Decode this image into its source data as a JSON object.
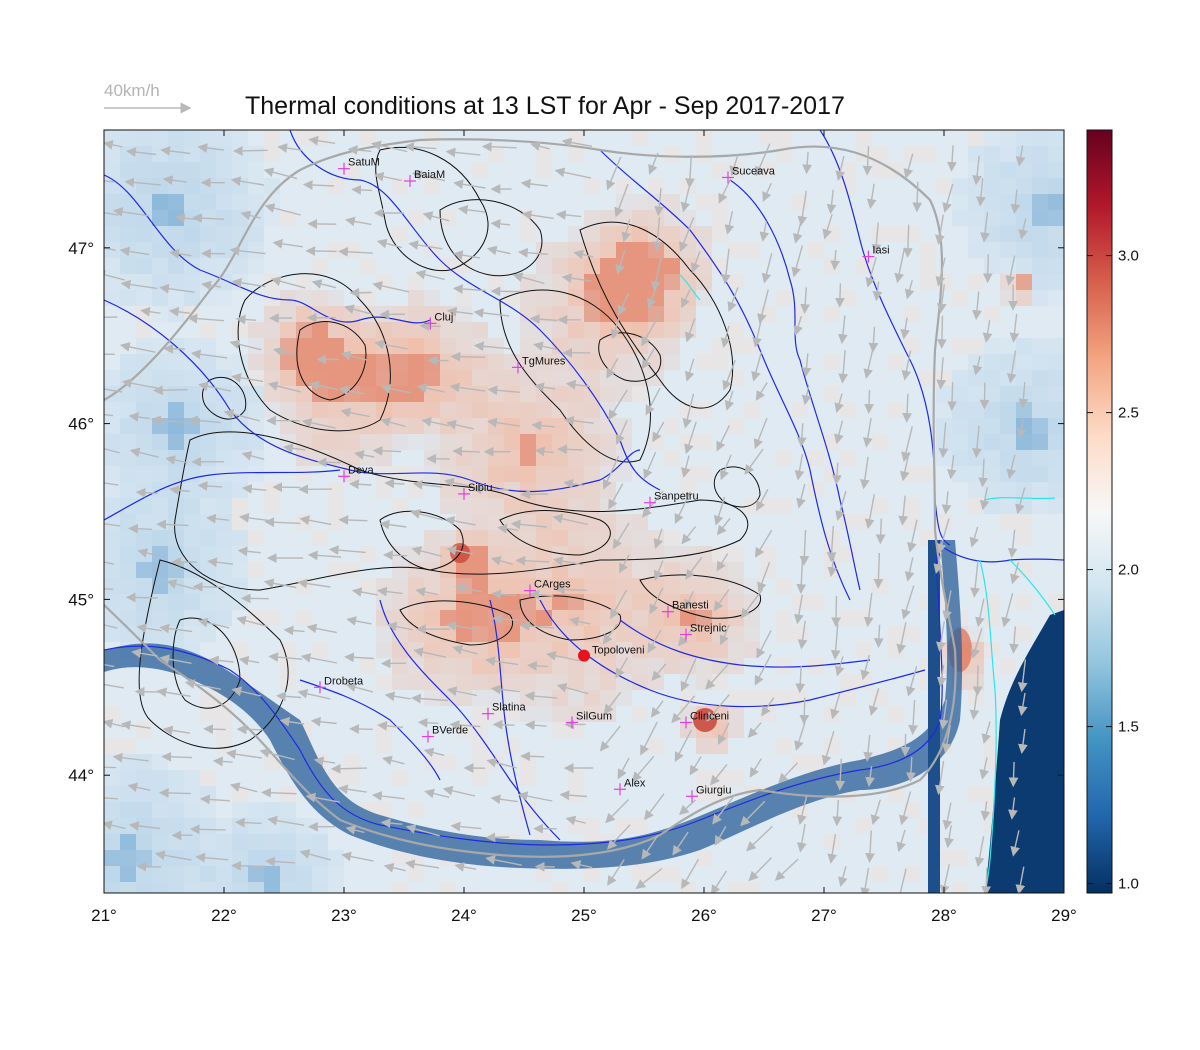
{
  "title": "Thermal conditions at 13 LST for Apr - Sep  2017-2017",
  "wind_scale": {
    "label": "40km/h"
  },
  "map": {
    "lon_range": [
      21,
      29
    ],
    "lat_range": [
      43.33,
      47.67
    ],
    "x_ticks": [
      {
        "value": 21,
        "label": "21°"
      },
      {
        "value": 22,
        "label": "22°"
      },
      {
        "value": 23,
        "label": "23°"
      },
      {
        "value": 24,
        "label": "24°"
      },
      {
        "value": 25,
        "label": "25°"
      },
      {
        "value": 26,
        "label": "26°"
      },
      {
        "value": 27,
        "label": "27°"
      },
      {
        "value": 28,
        "label": "28°"
      },
      {
        "value": 29,
        "label": "29°"
      }
    ],
    "y_ticks": [
      {
        "value": 44,
        "label": "44°"
      },
      {
        "value": 45,
        "label": "45°"
      },
      {
        "value": 46,
        "label": "46°"
      },
      {
        "value": 47,
        "label": "47°"
      }
    ],
    "cities": [
      {
        "name": "SatuM",
        "lon": 23.0,
        "lat": 47.45
      },
      {
        "name": "BaiaM",
        "lon": 23.55,
        "lat": 47.38
      },
      {
        "name": "Suceava",
        "lon": 26.2,
        "lat": 47.4
      },
      {
        "name": "Iasi",
        "lon": 27.37,
        "lat": 46.95
      },
      {
        "name": "Cluj",
        "lon": 23.72,
        "lat": 46.57
      },
      {
        "name": "TgMures",
        "lon": 24.45,
        "lat": 46.32
      },
      {
        "name": "Deva",
        "lon": 23.0,
        "lat": 45.7
      },
      {
        "name": "Sibiu",
        "lon": 24.0,
        "lat": 45.6
      },
      {
        "name": "Sanpetru",
        "lon": 25.55,
        "lat": 45.55
      },
      {
        "name": "CArges",
        "lon": 24.55,
        "lat": 45.05
      },
      {
        "name": "Banesti",
        "lon": 25.7,
        "lat": 44.93
      },
      {
        "name": "Strejnic",
        "lon": 25.85,
        "lat": 44.8
      },
      {
        "name": "Drobeta",
        "lon": 22.8,
        "lat": 44.5
      },
      {
        "name": "Slatina",
        "lon": 24.2,
        "lat": 44.35
      },
      {
        "name": "SilGum",
        "lon": 24.9,
        "lat": 44.3
      },
      {
        "name": "Clinceni",
        "lon": 25.85,
        "lat": 44.3
      },
      {
        "name": "BVerde",
        "lon": 23.7,
        "lat": 44.22
      },
      {
        "name": "Alex",
        "lon": 25.3,
        "lat": 43.92
      },
      {
        "name": "Giurgiu",
        "lon": 25.9,
        "lat": 43.88
      }
    ],
    "highlight": {
      "name": "Topoloveni",
      "lon": 25.0,
      "lat": 44.68,
      "color": "#e8141c"
    },
    "marker_color": "#e040e0",
    "river_color": "#1f2ae6",
    "coast_color": "#29e6ea",
    "wind_color": "#b8b8b8"
  },
  "colorbar": {
    "min": 0.97,
    "max": 3.4,
    "ticks": [
      {
        "value": 1.0,
        "label": "1.0"
      },
      {
        "value": 1.5,
        "label": "1.5"
      },
      {
        "value": 2.0,
        "label": "2.0"
      },
      {
        "value": 2.5,
        "label": "2.5"
      },
      {
        "value": 3.0,
        "label": "3.0"
      }
    ],
    "colors": [
      "#053061",
      "#2166ac",
      "#4393c3",
      "#92c5de",
      "#d1e5f0",
      "#f7f7f7",
      "#fddbc7",
      "#f4a582",
      "#d6604d",
      "#b2182b",
      "#67001f"
    ]
  }
}
